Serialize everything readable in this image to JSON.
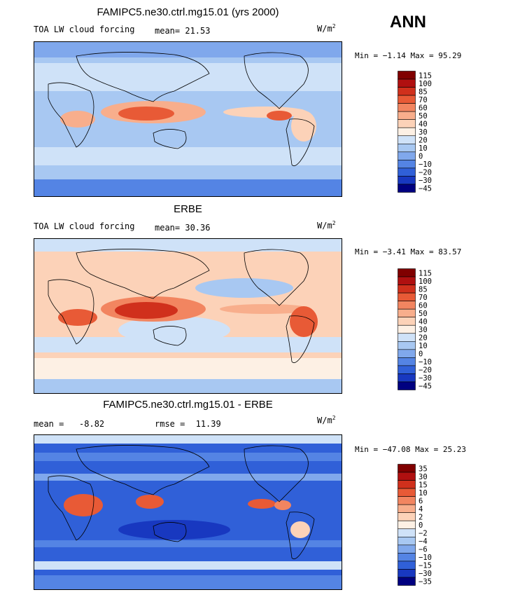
{
  "season": "ANN",
  "units_base": "W/m",
  "units_exp": "2",
  "panels": [
    {
      "title": "FAMIPC5.ne30.ctrl.mg15.01 (yrs 2000)",
      "left_label": "TOA LW cloud forcing",
      "stat_label": "mean=",
      "stat_value": "21.53",
      "minmax": "Min =  −1.14 Max =  95.29"
    },
    {
      "title": "ERBE",
      "left_label": "TOA LW cloud forcing",
      "stat_label": "mean=",
      "stat_value": "30.36",
      "minmax": "Min =  −3.41 Max =  83.57"
    },
    {
      "title": "FAMIPC5.ne30.ctrl.mg15.01 - ERBE",
      "left_label": "mean =   -8.82",
      "stat_label": "rmse =",
      "stat_value": "11.39",
      "minmax": "Min = −47.08 Max =  25.23"
    }
  ],
  "chart_data": [
    {
      "type": "heatmap",
      "title": "FAMIPC5.ne30.ctrl.mg15.01 (yrs 2000)",
      "field": "TOA LW cloud forcing",
      "units": "W/m2",
      "mean": 21.53,
      "min": -1.14,
      "max": 95.29,
      "colorbar_levels": [
        "115",
        "100",
        "85",
        "70",
        "60",
        "50",
        "40",
        "30",
        "20",
        "10",
        "0",
        "−10",
        "−20",
        "−30",
        "−45"
      ]
    },
    {
      "type": "heatmap",
      "title": "ERBE",
      "field": "TOA LW cloud forcing",
      "units": "W/m2",
      "mean": 30.36,
      "min": -3.41,
      "max": 83.57,
      "colorbar_levels": [
        "115",
        "100",
        "85",
        "70",
        "60",
        "50",
        "40",
        "30",
        "20",
        "10",
        "0",
        "−10",
        "−20",
        "−30",
        "−45"
      ]
    },
    {
      "type": "heatmap",
      "title": "FAMIPC5.ne30.ctrl.mg15.01 - ERBE",
      "units": "W/m2",
      "mean": -8.82,
      "rmse": 11.39,
      "min": -47.08,
      "max": 25.23,
      "colorbar_levels": [
        "35",
        "30",
        "15",
        "10",
        "6",
        "4",
        "2",
        "0",
        "−2",
        "−4",
        "−6",
        "−10",
        "−15",
        "−30",
        "−35"
      ]
    }
  ],
  "colors": {
    "palette": [
      "#800000",
      "#b01010",
      "#d0301c",
      "#e85a36",
      "#f28560",
      "#f8ae8c",
      "#fcd2b8",
      "#fdf0e4",
      "#cfe2f8",
      "#a8c8f2",
      "#80a8ec",
      "#5484e4",
      "#3060d8",
      "#1838c0",
      "#000080"
    ]
  }
}
